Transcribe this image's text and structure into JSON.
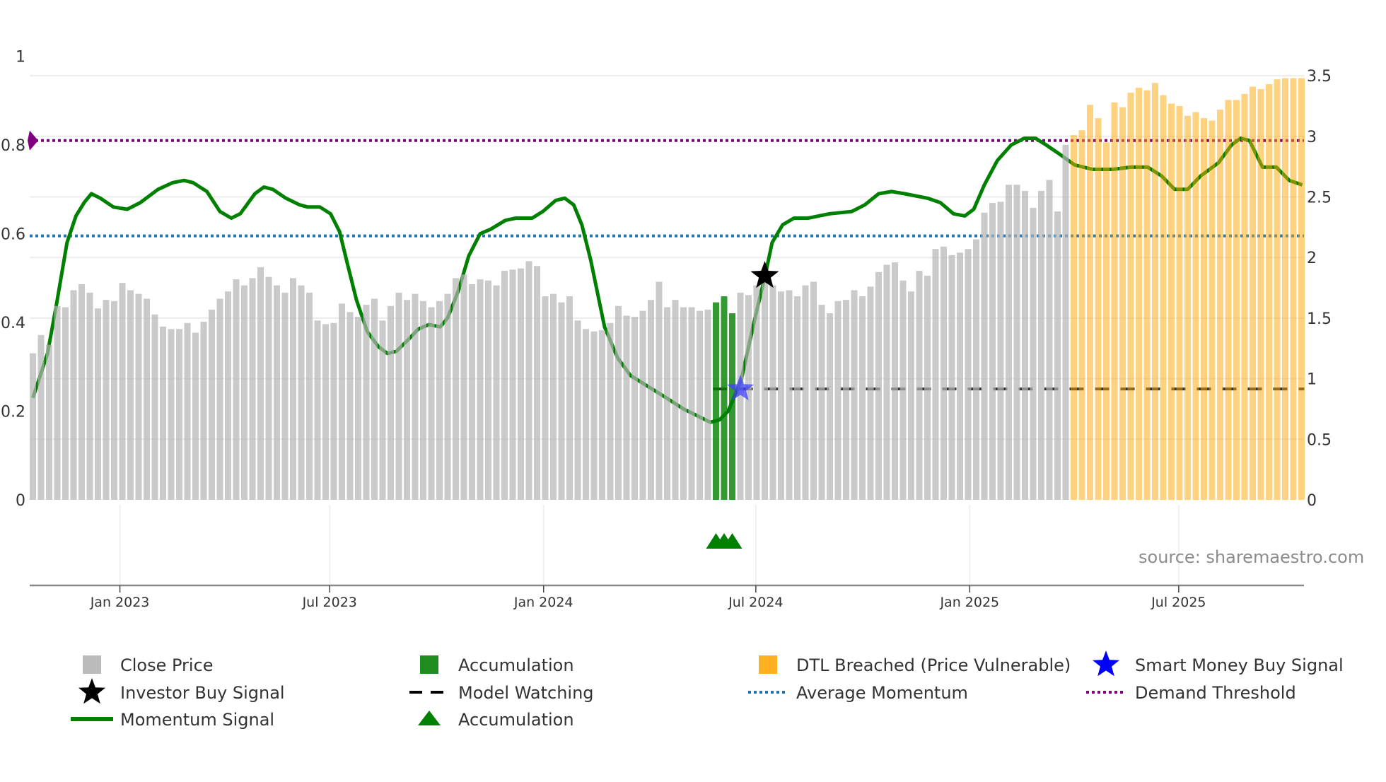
{
  "chart_data": {
    "type": "bar",
    "title": "",
    "left_axis": {
      "range": [
        0,
        1
      ],
      "ticks": [
        "0",
        "0.2",
        "0.4",
        "0.6",
        "0.8",
        "1"
      ]
    },
    "right_axis": {
      "range": [
        0,
        3.5
      ],
      "ticks": [
        "0",
        "0.5",
        "1",
        "1.5",
        "2",
        "2.5",
        "3",
        "3.5"
      ]
    },
    "x_axis": {
      "unit": "week index",
      "ticks": [
        {
          "label": "Jan 2023",
          "week": 10.7
        },
        {
          "label": "Jul 2023",
          "week": 36.5
        },
        {
          "label": "Jan 2024",
          "week": 62.8
        },
        {
          "label": "Jul 2024",
          "week": 88.9
        },
        {
          "label": "Jan 2025",
          "week": 115.2
        },
        {
          "label": "Jul 2025",
          "week": 140.9
        }
      ]
    },
    "close_price": [
      1.21,
      1.36,
      1.28,
      1.6,
      1.59,
      1.73,
      1.78,
      1.71,
      1.58,
      1.65,
      1.64,
      1.79,
      1.73,
      1.7,
      1.66,
      1.53,
      1.43,
      1.41,
      1.41,
      1.46,
      1.38,
      1.47,
      1.57,
      1.66,
      1.72,
      1.82,
      1.77,
      1.83,
      1.92,
      1.84,
      1.77,
      1.71,
      1.83,
      1.77,
      1.71,
      1.48,
      1.45,
      1.46,
      1.62,
      1.55,
      1.51,
      1.61,
      1.66,
      1.48,
      1.6,
      1.71,
      1.65,
      1.7,
      1.64,
      1.59,
      1.64,
      1.7,
      1.83,
      1.86,
      1.78,
      1.82,
      1.81,
      1.77,
      1.89,
      1.9,
      1.91,
      1.97,
      1.93,
      1.68,
      1.7,
      1.63,
      1.68,
      1.48,
      1.41,
      1.39,
      1.4,
      1.46,
      1.6,
      1.52,
      1.51,
      1.56,
      1.65,
      1.8,
      1.59,
      1.65,
      1.59,
      1.59,
      1.56,
      1.57,
      1.63,
      1.68,
      1.54,
      1.71,
      1.69,
      1.77,
      1.83,
      1.77,
      1.72,
      1.73,
      1.68,
      1.77,
      1.8,
      1.61,
      1.54,
      1.64,
      1.65,
      1.73,
      1.68,
      1.76,
      1.88,
      1.94,
      1.96,
      1.81,
      1.72,
      1.89,
      1.85,
      2.07,
      2.09,
      2.02,
      2.04,
      2.07,
      2.15,
      2.37,
      2.45,
      2.46,
      2.6,
      2.6,
      2.55,
      2.41,
      2.55,
      2.64,
      2.38,
      2.93,
      3.01,
      3.05,
      3.26,
      3.15,
      2.95,
      3.28,
      3.24,
      3.36,
      3.4,
      3.38,
      3.44,
      3.34,
      3.27,
      3.25,
      3.17,
      3.2,
      3.15,
      3.13,
      3.22,
      3.3,
      3.3,
      3.35,
      3.41,
      3.39,
      3.43,
      3.47,
      3.48,
      3.48,
      3.48
    ],
    "accumulation_weeks": [
      84,
      85,
      86
    ],
    "dtl_breached_from_week": 128,
    "momentum": [
      [
        0,
        0.23
      ],
      [
        1.8,
        0.33
      ],
      [
        2.9,
        0.44
      ],
      [
        4.2,
        0.58
      ],
      [
        5.3,
        0.64
      ],
      [
        6.3,
        0.67
      ],
      [
        7.2,
        0.69
      ],
      [
        8.3,
        0.68
      ],
      [
        9.9,
        0.66
      ],
      [
        11.6,
        0.655
      ],
      [
        13.2,
        0.67
      ],
      [
        15.4,
        0.7
      ],
      [
        17.2,
        0.715
      ],
      [
        18.6,
        0.72
      ],
      [
        19.7,
        0.715
      ],
      [
        21.4,
        0.695
      ],
      [
        23.0,
        0.65
      ],
      [
        24.4,
        0.635
      ],
      [
        25.5,
        0.645
      ],
      [
        27.3,
        0.69
      ],
      [
        28.4,
        0.705
      ],
      [
        29.5,
        0.7
      ],
      [
        31.1,
        0.68
      ],
      [
        32.8,
        0.665
      ],
      [
        33.8,
        0.66
      ],
      [
        35.3,
        0.66
      ],
      [
        36.6,
        0.645
      ],
      [
        37.7,
        0.605
      ],
      [
        38.7,
        0.53
      ],
      [
        39.8,
        0.45
      ],
      [
        41.1,
        0.38
      ],
      [
        42.5,
        0.345
      ],
      [
        43.6,
        0.33
      ],
      [
        44.7,
        0.335
      ],
      [
        46.1,
        0.36
      ],
      [
        47.4,
        0.385
      ],
      [
        48.7,
        0.395
      ],
      [
        50.1,
        0.39
      ],
      [
        51.0,
        0.41
      ],
      [
        52.3,
        0.47
      ],
      [
        53.6,
        0.55
      ],
      [
        55.0,
        0.6
      ],
      [
        56.3,
        0.61
      ],
      [
        58.1,
        0.63
      ],
      [
        59.4,
        0.635
      ],
      [
        61.4,
        0.635
      ],
      [
        62.7,
        0.65
      ],
      [
        64.3,
        0.675
      ],
      [
        65.4,
        0.68
      ],
      [
        66.5,
        0.665
      ],
      [
        67.5,
        0.62
      ],
      [
        68.6,
        0.54
      ],
      [
        70.3,
        0.39
      ],
      [
        71.9,
        0.32
      ],
      [
        73.5,
        0.28
      ],
      [
        75.7,
        0.255
      ],
      [
        77.9,
        0.23
      ],
      [
        80.0,
        0.205
      ],
      [
        82.2,
        0.185
      ],
      [
        83.3,
        0.175
      ],
      [
        84.4,
        0.18
      ],
      [
        85.5,
        0.2
      ],
      [
        87.1,
        0.27
      ],
      [
        88.8,
        0.41
      ],
      [
        90.1,
        0.51
      ],
      [
        90.9,
        0.58
      ],
      [
        92.2,
        0.62
      ],
      [
        93.6,
        0.635
      ],
      [
        95.3,
        0.635
      ],
      [
        98.0,
        0.645
      ],
      [
        100.7,
        0.65
      ],
      [
        102.3,
        0.665
      ],
      [
        104.0,
        0.69
      ],
      [
        105.6,
        0.695
      ],
      [
        107.2,
        0.69
      ],
      [
        110.0,
        0.68
      ],
      [
        111.6,
        0.67
      ],
      [
        113.2,
        0.645
      ],
      [
        114.6,
        0.64
      ],
      [
        115.7,
        0.655
      ],
      [
        117.0,
        0.71
      ],
      [
        118.6,
        0.765
      ],
      [
        120.3,
        0.8
      ],
      [
        121.9,
        0.815
      ],
      [
        123.3,
        0.815
      ],
      [
        124.6,
        0.8
      ],
      [
        126.2,
        0.78
      ],
      [
        128.1,
        0.755
      ],
      [
        130.3,
        0.745
      ],
      [
        132.8,
        0.745
      ],
      [
        135.0,
        0.75
      ],
      [
        137.1,
        0.75
      ],
      [
        138.8,
        0.73
      ],
      [
        140.4,
        0.7
      ],
      [
        142.0,
        0.7
      ],
      [
        143.6,
        0.73
      ],
      [
        145.8,
        0.76
      ],
      [
        147.4,
        0.8
      ],
      [
        148.5,
        0.815
      ],
      [
        149.6,
        0.81
      ],
      [
        151.2,
        0.75
      ],
      [
        152.9,
        0.75
      ],
      [
        154.5,
        0.72
      ],
      [
        156.1,
        0.71
      ]
    ],
    "average_momentum": 0.595,
    "demand_threshold": 0.81,
    "model_watching": {
      "value": 0.25,
      "from_week": 84,
      "to_week": 156
    },
    "smart_money_buy_signal": {
      "week": 87,
      "value": 0.25
    },
    "investor_buy_signal": {
      "week": 90,
      "value": 0.505
    },
    "source_note": "source: sharemaestro.com",
    "legend": [
      {
        "label": "Close Price",
        "icon": "grey-square",
        "color": "#bbbbbb"
      },
      {
        "label": "Accumulation",
        "icon": "green-square",
        "color": "#1e8c1e"
      },
      {
        "label": "DTL Breached (Price Vulnerable)",
        "icon": "orange-square",
        "color": "#ffb020"
      },
      {
        "label": "Smart Money Buy Signal",
        "icon": "blue-star",
        "color": "#0000ff"
      },
      {
        "label": "Investor Buy Signal",
        "icon": "black-star",
        "color": "#000000"
      },
      {
        "label": "Model Watching",
        "icon": "black-dash",
        "color": "#000000"
      },
      {
        "label": "Average Momentum",
        "icon": "blue-dots",
        "color": "#1f77b4"
      },
      {
        "label": "Demand Threshold",
        "icon": "purple-dots",
        "color": "#800080"
      },
      {
        "label": "Momentum Signal",
        "icon": "green-line",
        "color": "#008000"
      },
      {
        "label": "Accumulation",
        "icon": "green-triangle",
        "color": "#008000"
      }
    ],
    "colors": {
      "price": "#b4b4b4",
      "accum": "#008000",
      "dtl": "#ffa500",
      "momentum": "#008000",
      "avg": "#1f77b4",
      "threshold": "#800080",
      "smart": "#4040ff"
    }
  }
}
